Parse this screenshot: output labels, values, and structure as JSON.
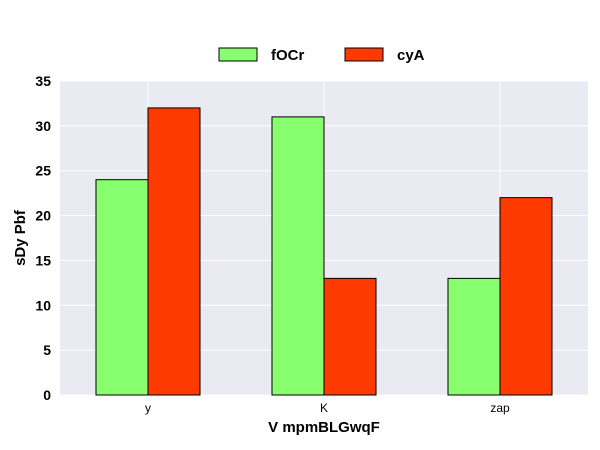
{
  "chart_data": {
    "type": "bar",
    "title": "",
    "xlabel": "V  mpmBLGwqF",
    "ylabel": "sDy  Pbf",
    "categories": [
      "y",
      "K",
      "zap"
    ],
    "series": [
      {
        "name": "fOCr",
        "color": "#88ff6e",
        "values": [
          24,
          31,
          13
        ]
      },
      {
        "name": "cyA",
        "color": "#ff3a00",
        "values": [
          32,
          13,
          22
        ]
      }
    ],
    "ylim": [
      0,
      35
    ],
    "yticks": [
      0,
      5,
      10,
      15,
      20,
      25,
      30,
      35
    ],
    "grid": true,
    "legend_position": "top-center",
    "background_color": "#eaeaf2",
    "grid_color": "#ffffff"
  }
}
